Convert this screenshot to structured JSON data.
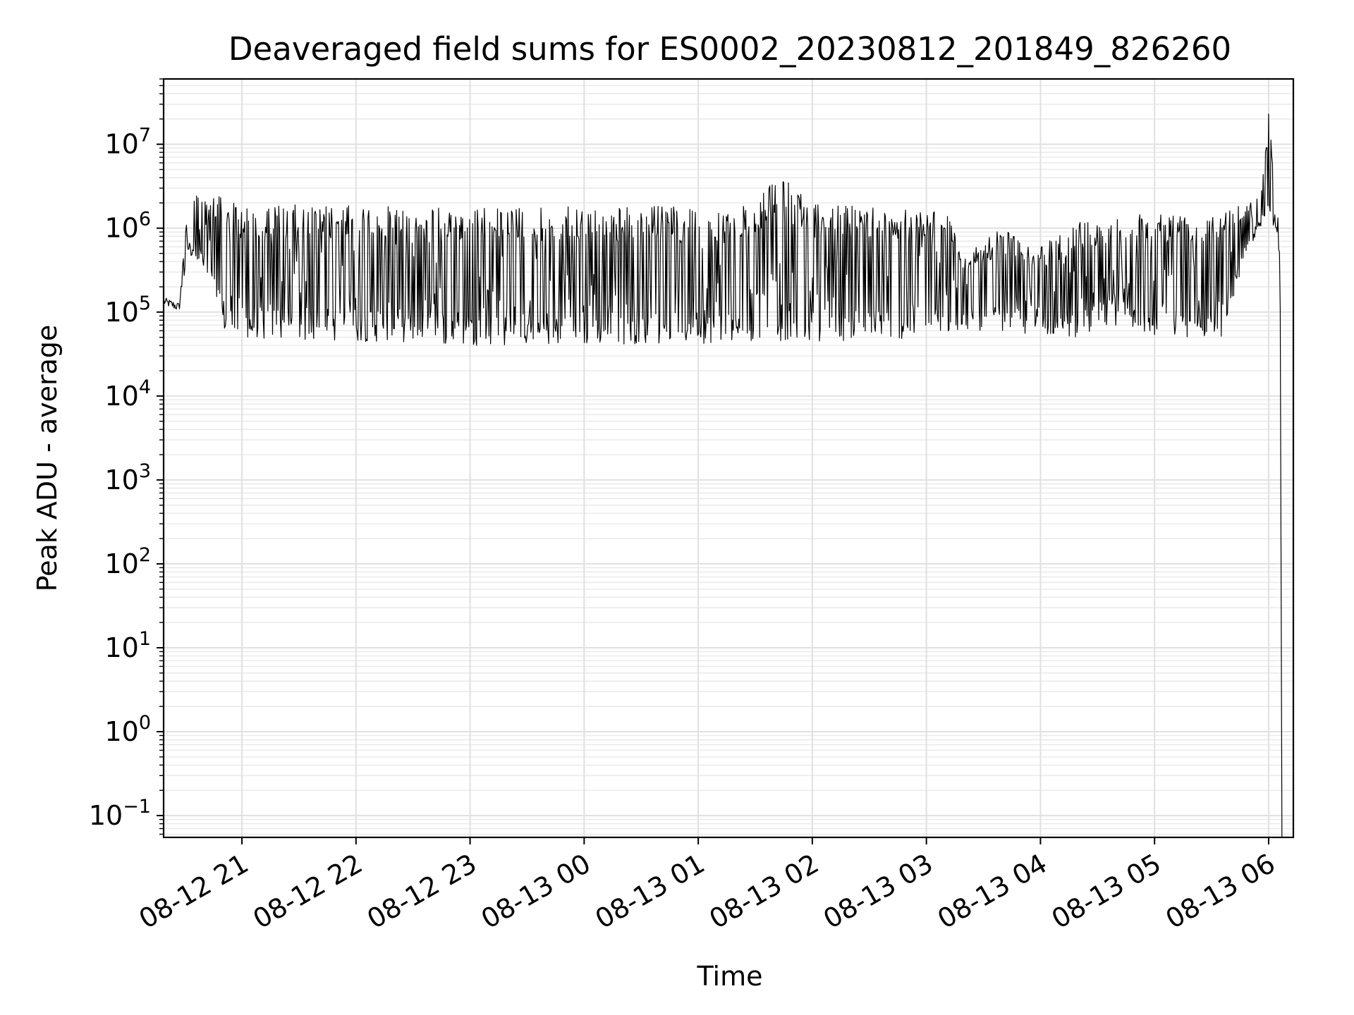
{
  "chart_data": {
    "type": "line",
    "title": "Deaveraged field sums for ES0002_20230812_201849_826260",
    "xlabel": "Time",
    "ylabel": "Peak ADU - average",
    "yscale": "log",
    "ylim": [
      0.055,
      60000000
    ],
    "xlim": [
      "2023-08-12 20:18:49",
      "2023-08-13 06:13:00"
    ],
    "grid": true,
    "legend": "none",
    "line_color": "#000000",
    "x_ticks": [
      {
        "value": "2023-08-12 21:00",
        "label": "08-12 21"
      },
      {
        "value": "2023-08-12 22:00",
        "label": "08-12 22"
      },
      {
        "value": "2023-08-12 23:00",
        "label": "08-12 23"
      },
      {
        "value": "2023-08-13 00:00",
        "label": "08-13 00"
      },
      {
        "value": "2023-08-13 01:00",
        "label": "08-13 01"
      },
      {
        "value": "2023-08-13 02:00",
        "label": "08-13 02"
      },
      {
        "value": "2023-08-13 03:00",
        "label": "08-13 03"
      },
      {
        "value": "2023-08-13 04:00",
        "label": "08-13 04"
      },
      {
        "value": "2023-08-13 05:00",
        "label": "08-13 05"
      },
      {
        "value": "2023-08-13 06:00",
        "label": "08-13 06"
      }
    ],
    "y_ticks": [
      {
        "value": 0.1,
        "base": "10",
        "exp": "−1"
      },
      {
        "value": 1,
        "base": "10",
        "exp": "0"
      },
      {
        "value": 10,
        "base": "10",
        "exp": "1"
      },
      {
        "value": 100,
        "base": "10",
        "exp": "2"
      },
      {
        "value": 1000,
        "base": "10",
        "exp": "3"
      },
      {
        "value": 10000,
        "base": "10",
        "exp": "4"
      },
      {
        "value": 100000,
        "base": "10",
        "exp": "5"
      },
      {
        "value": 1000000,
        "base": "10",
        "exp": "6"
      },
      {
        "value": 10000000,
        "base": "10",
        "exp": "7"
      }
    ],
    "series": [
      {
        "x": [
          "2023-08-12 20:19",
          "2023-08-12 20:27",
          "2023-08-12 20:31",
          "2023-08-12 20:35",
          "2023-08-12 20:40",
          "2023-08-12 20:45",
          "2023-08-12 20:50",
          "2023-08-12 20:55",
          "2023-08-12 21:00",
          "2023-08-12 21:10",
          "2023-08-12 21:30",
          "2023-08-12 22:00",
          "2023-08-12 22:30",
          "2023-08-12 23:00",
          "2023-08-12 23:30",
          "2023-08-13 00:00",
          "2023-08-13 00:30",
          "2023-08-13 01:00",
          "2023-08-13 01:30",
          "2023-08-13 01:42",
          "2023-08-13 02:00",
          "2023-08-13 02:30",
          "2023-08-13 03:00",
          "2023-08-13 03:10",
          "2023-08-13 03:20",
          "2023-08-13 03:40",
          "2023-08-13 04:00",
          "2023-08-13 04:20",
          "2023-08-13 04:40",
          "2023-08-13 05:00",
          "2023-08-13 05:20",
          "2023-08-13 05:35",
          "2023-08-13 05:50",
          "2023-08-13 05:56",
          "2023-08-13 06:00",
          "2023-08-13 06:04",
          "2023-08-13 06:06",
          "2023-08-13 06:07"
        ],
        "upper": [
          150000,
          130000,
          1400000,
          2500000,
          2800000,
          2700000,
          2200000,
          2000000,
          1950000,
          1900000,
          1900000,
          1850000,
          1800000,
          1750000,
          1800000,
          1800000,
          1850000,
          1850000,
          1850000,
          4800000,
          1900000,
          1900000,
          1800000,
          1700000,
          500000,
          1000000,
          600000,
          1200000,
          1500000,
          1600000,
          1500000,
          1800000,
          2200000,
          3000000,
          25000000,
          2000000,
          800000,
          0.055
        ],
        "lower": [
          120000,
          100000,
          400000,
          500000,
          300000,
          150000,
          60000,
          45000,
          45000,
          45000,
          45000,
          45000,
          42000,
          40000,
          40000,
          40000,
          42000,
          42000,
          45000,
          45000,
          45000,
          45000,
          50000,
          50000,
          60000,
          60000,
          50000,
          50000,
          70000,
          50000,
          50000,
          50000,
          600000,
          1000000,
          1200000,
          1000000,
          400000,
          0.055
        ]
      }
    ]
  }
}
